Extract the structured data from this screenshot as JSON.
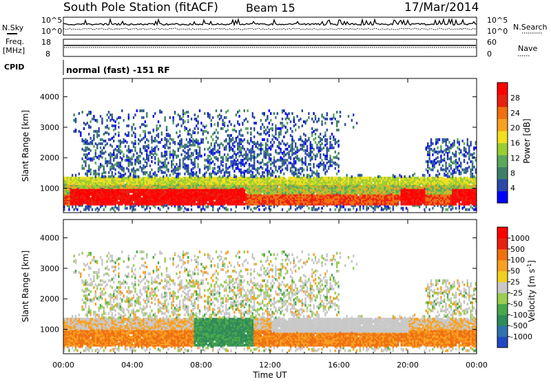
{
  "header": {
    "station": "South Pole Station (fitACF)",
    "beam": "Beam 15",
    "date": "17/Mar/2014"
  },
  "top_panels": {
    "nsky": {
      "label": "N.Sky",
      "ytick_top": "10^5",
      "ytick_bottom": "10^0"
    },
    "nsearch": {
      "label": "N.Search",
      "ytick_top": "10^5",
      "ytick_bottom": "10^0"
    },
    "freq": {
      "label_line1": "Freq.",
      "label_line2": "[MHz]",
      "ytick_top": "18",
      "ytick_bottom": "8"
    },
    "nave": {
      "label": "Nave",
      "ytick_top": "60",
      "ytick_bottom": "0"
    },
    "cpid": {
      "label": "CPID",
      "value": "normal (fast) -151 RF"
    }
  },
  "chart_data": [
    {
      "type": "heatmap",
      "name": "power",
      "ylabel": "Slant Range [km]",
      "yticks": [
        "1000",
        "2000",
        "3000",
        "4000"
      ],
      "ylim": [
        200,
        4600
      ],
      "x_range_hours": [
        0,
        24
      ],
      "colorbar": {
        "label": "Power [dB]",
        "ticks": [
          "4",
          "8",
          "12",
          "16",
          "20",
          "24",
          "28"
        ],
        "colors": [
          "#0000ff",
          "#2b48a8",
          "#3f7f68",
          "#5aa85a",
          "#9acd32",
          "#f0e020",
          "#f8a020",
          "#f07010",
          "#e82010",
          "#ff0000"
        ]
      }
    },
    {
      "type": "heatmap",
      "name": "velocity",
      "ylabel": "Slant Range [km]",
      "yticks": [
        "1000",
        "2000",
        "3000",
        "4000"
      ],
      "ylim": [
        200,
        4600
      ],
      "x_range_hours": [
        0,
        24
      ],
      "colorbar": {
        "label": "Velocity [m s^-1]",
        "ticks": [
          "1000",
          "500",
          "100",
          "50",
          "25",
          "-25",
          "-50",
          "-100",
          "-500",
          "-1000"
        ],
        "colors": [
          "#2048c0",
          "#3070b0",
          "#2e8b57",
          "#4aa84a",
          "#9acd50",
          "#c8c8c8",
          "#f0d020",
          "#f8a020",
          "#f07010",
          "#e82010",
          "#ff0000"
        ]
      }
    }
  ],
  "xaxis": {
    "ticks": [
      "00:00",
      "04:00",
      "08:00",
      "12:00",
      "16:00",
      "20:00",
      "00:00"
    ],
    "label": "Time UT"
  }
}
